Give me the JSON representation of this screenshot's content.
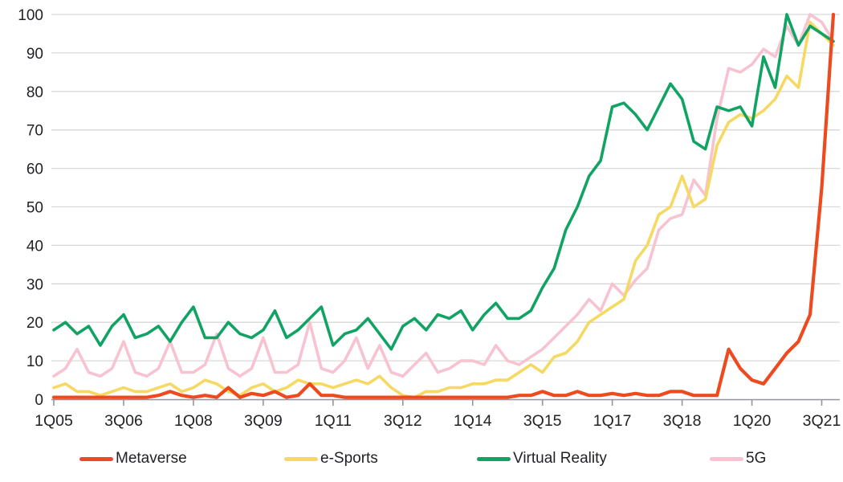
{
  "chart_data": {
    "type": "line",
    "title": "",
    "grid": "horizontal",
    "legend_position": "bottom",
    "categories": [
      "1Q05",
      "2Q05",
      "3Q05",
      "4Q05",
      "1Q06",
      "2Q06",
      "3Q06",
      "4Q06",
      "1Q07",
      "2Q07",
      "3Q07",
      "4Q07",
      "1Q08",
      "2Q08",
      "3Q08",
      "4Q08",
      "1Q09",
      "2Q09",
      "3Q09",
      "4Q09",
      "1Q10",
      "2Q10",
      "3Q10",
      "4Q10",
      "1Q11",
      "2Q11",
      "3Q11",
      "4Q11",
      "1Q12",
      "2Q12",
      "3Q12",
      "4Q12",
      "1Q13",
      "2Q13",
      "3Q13",
      "4Q13",
      "1Q14",
      "2Q14",
      "3Q14",
      "4Q14",
      "1Q15",
      "2Q15",
      "3Q15",
      "4Q15",
      "1Q16",
      "2Q16",
      "3Q16",
      "4Q16",
      "1Q17",
      "2Q17",
      "3Q17",
      "4Q17",
      "1Q18",
      "2Q18",
      "3Q18",
      "4Q18",
      "1Q19",
      "2Q19",
      "3Q19",
      "4Q19",
      "1Q20",
      "2Q20",
      "3Q20",
      "4Q20",
      "1Q21",
      "2Q21",
      "3Q21",
      "4Q21"
    ],
    "x_ticks": {
      "indices": [
        0,
        6,
        12,
        18,
        24,
        30,
        36,
        42,
        48,
        54,
        60,
        66
      ],
      "labels": [
        "1Q05",
        "3Q06",
        "1Q08",
        "3Q09",
        "1Q11",
        "3Q12",
        "1Q14",
        "3Q15",
        "1Q17",
        "3Q18",
        "1Q20",
        "3Q21"
      ]
    },
    "y_axis": {
      "min": 0,
      "max": 100,
      "step": 10,
      "tick_labels": [
        "0",
        "10",
        "20",
        "30",
        "40",
        "50",
        "60",
        "70",
        "80",
        "90",
        "100"
      ]
    },
    "series": [
      {
        "name": "Metaverse",
        "color": "#ee4a1f",
        "values": [
          0.5,
          0.5,
          0.5,
          0.5,
          0.5,
          0.5,
          0.5,
          0.5,
          0.5,
          1,
          2,
          1,
          0.5,
          1,
          0.5,
          3,
          0.5,
          1.5,
          1,
          2,
          0.5,
          1,
          4,
          1,
          1,
          0.5,
          0.5,
          0.5,
          0.5,
          0.5,
          0.5,
          0.5,
          0.5,
          0.5,
          0.5,
          0.5,
          0.5,
          0.5,
          0.5,
          0.5,
          1,
          1,
          2,
          1,
          1,
          2,
          1,
          1,
          1.5,
          1,
          1.5,
          1,
          1,
          2,
          2,
          1,
          1,
          1,
          13,
          8,
          5,
          4,
          8,
          12,
          15,
          22,
          55,
          100
        ]
      },
      {
        "name": "e-Sports",
        "color": "#f6d963",
        "values": [
          3,
          4,
          2,
          2,
          1,
          2,
          3,
          2,
          2,
          3,
          4,
          2,
          3,
          5,
          4,
          2,
          1,
          3,
          4,
          2,
          3,
          5,
          4,
          4,
          3,
          4,
          5,
          4,
          6,
          3,
          1,
          0.5,
          2,
          2,
          3,
          3,
          4,
          4,
          5,
          5,
          7,
          9,
          7,
          11,
          12,
          15,
          20,
          22,
          24,
          26,
          36,
          40,
          48,
          50,
          58,
          50,
          52,
          66,
          72,
          74,
          73,
          75,
          78,
          84,
          81,
          98,
          95,
          92
        ]
      },
      {
        "name": "Virtual Reality",
        "color": "#10a364",
        "values": [
          18,
          20,
          17,
          19,
          14,
          19,
          22,
          16,
          17,
          19,
          15,
          20,
          24,
          16,
          16,
          20,
          17,
          16,
          18,
          23,
          16,
          18,
          21,
          24,
          14,
          17,
          18,
          21,
          17,
          13,
          19,
          21,
          18,
          22,
          21,
          23,
          18,
          22,
          25,
          21,
          21,
          23,
          29,
          34,
          44,
          50,
          58,
          62,
          76,
          77,
          74,
          70,
          76,
          82,
          78,
          67,
          65,
          76,
          75,
          76,
          71,
          89,
          81,
          100,
          92,
          97,
          95,
          93
        ]
      },
      {
        "name": "5G",
        "color": "#f8c3d1",
        "values": [
          6,
          8,
          13,
          7,
          6,
          8,
          15,
          7,
          6,
          8,
          15,
          7,
          7,
          9,
          17,
          8,
          6,
          8,
          16,
          7,
          7,
          9,
          20,
          8,
          7,
          10,
          16,
          8,
          14,
          7,
          6,
          9,
          12,
          7,
          8,
          10,
          10,
          9,
          14,
          10,
          9,
          11,
          13,
          16,
          19,
          22,
          26,
          23,
          30,
          27,
          31,
          34,
          44,
          47,
          48,
          57,
          53,
          73,
          86,
          85,
          87,
          91,
          89,
          97,
          92,
          100,
          98,
          93
        ]
      }
    ],
    "colors": {
      "gridline": "#d8d8d8",
      "axis": "#94949b",
      "tick_text": "#222226",
      "background": "#ffffff"
    }
  }
}
